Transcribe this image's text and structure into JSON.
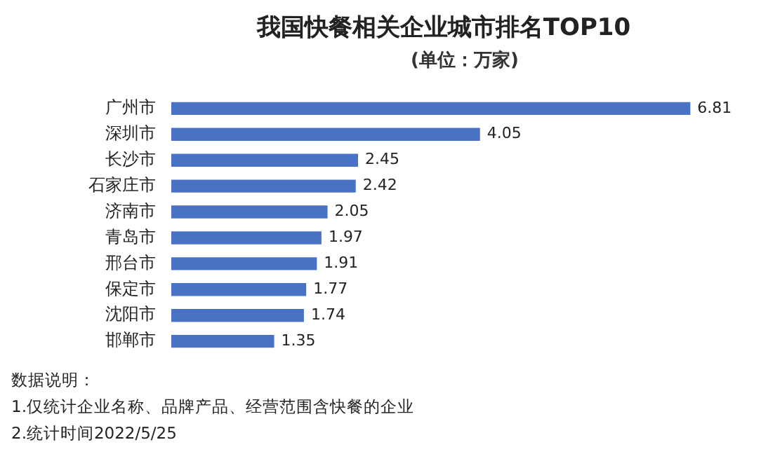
{
  "chart_data": {
    "type": "bar",
    "orientation": "horizontal",
    "title": "我国快餐相关企业城市排名TOP10",
    "subtitle": "(单位：万家)",
    "categories": [
      "广州市",
      "深圳市",
      "长沙市",
      "石家庄市",
      "济南市",
      "青岛市",
      "邢台市",
      "保定市",
      "沈阳市",
      "邯郸市"
    ],
    "values": [
      6.81,
      4.05,
      2.45,
      2.42,
      2.05,
      1.97,
      1.91,
      1.77,
      1.74,
      1.35
    ],
    "color": "#4a72c4",
    "data_labels": true,
    "grid": false,
    "legend": false,
    "annotations": [
      "数据说明：",
      "1.仅统计企业名称、品牌产品、经营范围含快餐的企业",
      "2.统计时间2022/5/25"
    ]
  }
}
